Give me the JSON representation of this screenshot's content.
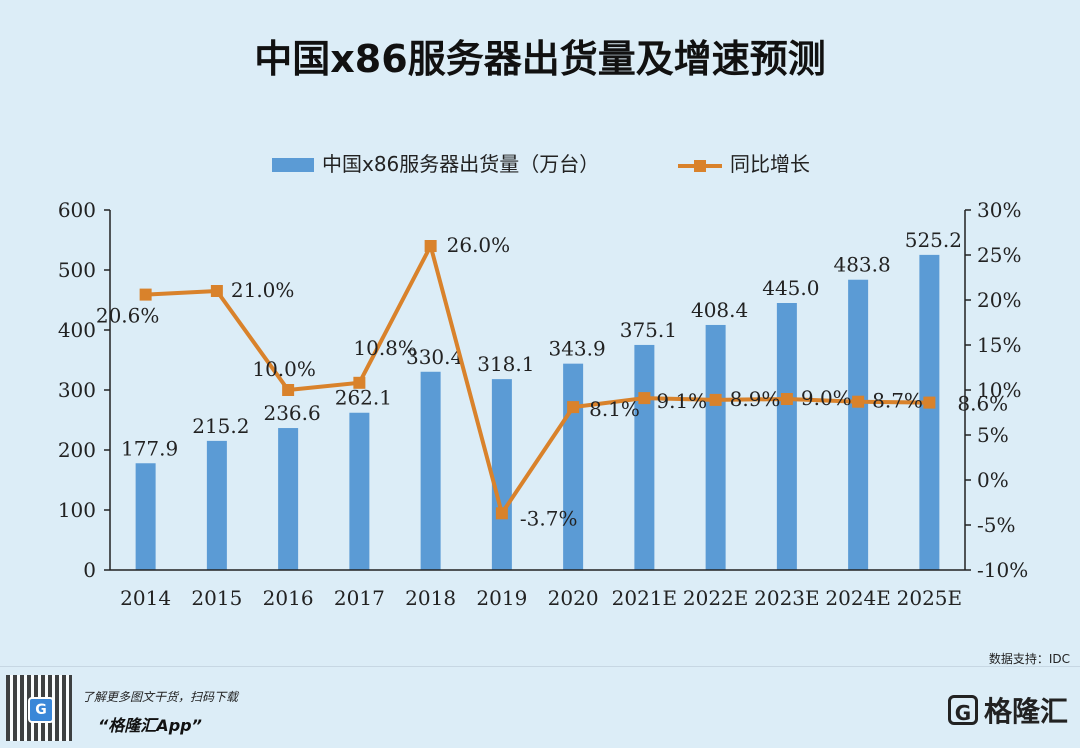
{
  "title": "中国x86服务器出货量及增速预测",
  "source": "数据支持：IDC",
  "promo": {
    "line1": "了解更多图文干货，扫码下载",
    "line2": "“格隆汇App”"
  },
  "brand": {
    "name": "格隆汇",
    "icon_letter": "G"
  },
  "colors": {
    "bar": "#5b9bd5",
    "line": "#d9822b",
    "axis": "#222222"
  },
  "chart_data": {
    "type": "bar",
    "title": "中国x86服务器出货量及增速预测",
    "categories": [
      "2014",
      "2015",
      "2016",
      "2017",
      "2018",
      "2019",
      "2020",
      "2021E",
      "2022E",
      "2023E",
      "2024E",
      "2025E"
    ],
    "series": [
      {
        "name": "中国x86服务器出货量（万台）",
        "type": "bar",
        "axis": "left",
        "values": [
          177.9,
          215.2,
          236.6,
          262.1,
          330.4,
          318.1,
          343.9,
          375.1,
          408.4,
          445.0,
          483.8,
          525.2
        ],
        "labels": [
          "177.9",
          "215.2",
          "236.6",
          "262.1",
          "330.4",
          "318.1",
          "343.9",
          "375.1",
          "408.4",
          "445.0",
          "483.8",
          "525.2"
        ]
      },
      {
        "name": "同比增长",
        "type": "line",
        "axis": "right",
        "values": [
          20.6,
          21.0,
          10.0,
          10.8,
          26.0,
          -3.7,
          8.1,
          9.1,
          8.9,
          9.0,
          8.7,
          8.6
        ],
        "labels": [
          "20.6%",
          "21.0%",
          "10.0%",
          "10.8%",
          "26.0%",
          "-3.7%",
          "8.1%",
          "9.1%",
          "8.9%",
          "9.0%",
          "8.7%",
          "8.6%"
        ]
      }
    ],
    "y_left": {
      "min": 0,
      "max": 600,
      "ticks": [
        "0",
        "100",
        "200",
        "300",
        "400",
        "500",
        "600"
      ]
    },
    "y_right": {
      "min": -10,
      "max": 30,
      "ticks": [
        "-10%",
        "-5%",
        "0%",
        "5%",
        "10%",
        "15%",
        "20%",
        "25%",
        "30%"
      ]
    },
    "legend": "top-center",
    "grid": false
  }
}
